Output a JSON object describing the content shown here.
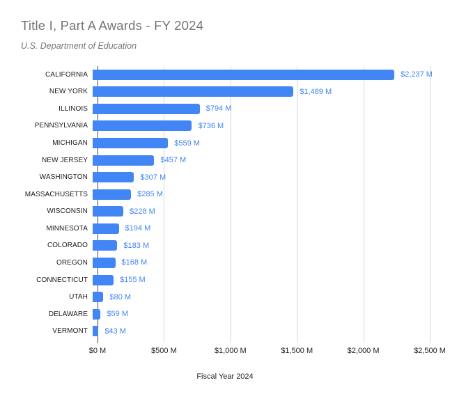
{
  "header": {
    "title": "Title I, Part A Awards - FY 2024",
    "subtitle": "U.S. Department of Education"
  },
  "chart_data": {
    "type": "bar",
    "orientation": "horizontal",
    "title": "Title I, Part A Awards - FY 2024",
    "subtitle": "U.S. Department of Education",
    "categories": [
      "CALIFORNIA",
      "NEW YORK",
      "ILLINOIS",
      "PENNSYLVANIA",
      "MICHIGAN",
      "NEW JERSEY",
      "WASHINGTON",
      "MASSACHUSETTS",
      "WISCONSIN",
      "MINNESOTA",
      "COLORADO",
      "OREGON",
      "CONNECTICUT",
      "UTAH",
      "DELAWARE",
      "VERMONT"
    ],
    "values": [
      2237,
      1489,
      794,
      736,
      559,
      457,
      307,
      285,
      228,
      194,
      183,
      168,
      155,
      80,
      59,
      43
    ],
    "value_labels": [
      "$2,237 M",
      "$1,489 M",
      "$794 M",
      "$736 M",
      "$559 M",
      "$457 M",
      "$307 M",
      "$285 M",
      "$228 M",
      "$194 M",
      "$183 M",
      "$168 M",
      "$155 M",
      "$80 M",
      "$59 M",
      "$43 M"
    ],
    "xlabel": "Fiscal Year 2024",
    "ylabel": "",
    "x_ticks": [
      "$0 M",
      "$500 M",
      "$1,000 M",
      "$1,500 M",
      "$2,000 M",
      "$2,500 M"
    ],
    "xlim": [
      0,
      2500
    ],
    "grid": true,
    "legend": "none"
  },
  "colors": {
    "bar": "#4285f4",
    "value_label": "#4285f4",
    "gridline": "#d6d6d6",
    "axis_line": "#424242",
    "title_text": "#757575",
    "category_text": "#1a1a1a",
    "tick_text": "#222222",
    "background": "#ffffff"
  }
}
